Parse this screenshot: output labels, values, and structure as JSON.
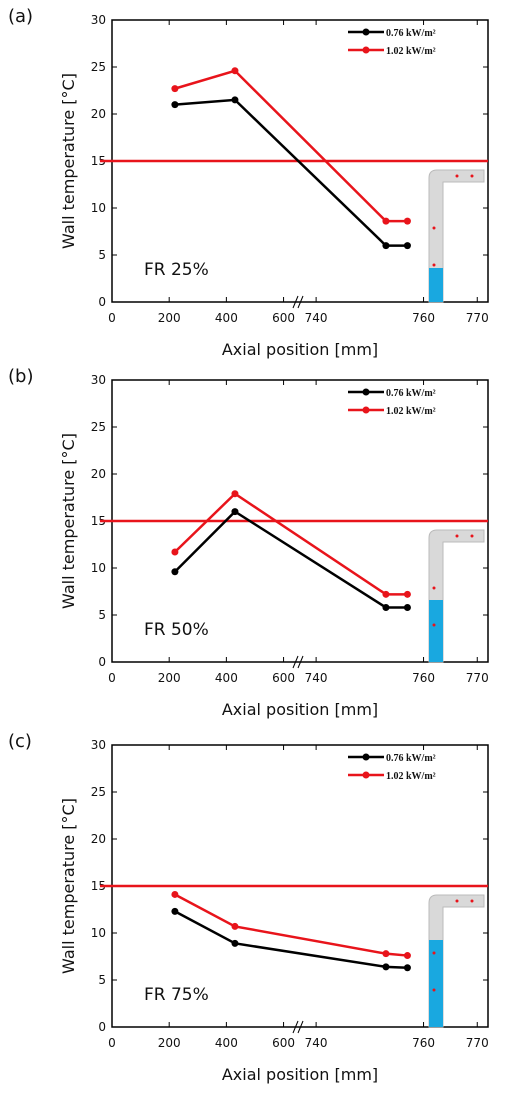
{
  "chart_data": [
    {
      "type": "line",
      "label": "(a)",
      "annotation": "FR 25%",
      "xlabel": "Axial position [mm]",
      "ylabel": "Wall temperature [°C]",
      "ylim": [
        0,
        30
      ],
      "yticks": [
        0,
        5,
        10,
        15,
        20,
        25,
        30
      ],
      "xsegments": [
        {
          "xlim": [
            0,
            640
          ],
          "xticks": [
            0,
            200,
            400,
            600
          ]
        },
        {
          "xlim": [
            737,
            772
          ],
          "xticks": [
            740,
            760,
            770
          ]
        }
      ],
      "x": [
        220,
        430,
        753,
        757
      ],
      "hline": 15,
      "hline_color": "#e8141b",
      "legend": "upper right",
      "series": [
        {
          "name": "0.76 kW/m²",
          "color": "#000000",
          "values": [
            21,
            21.5,
            6,
            6
          ]
        },
        {
          "name": "1.02 kW/m²",
          "color": "#e8141b",
          "values": [
            22.7,
            24.6,
            8.6,
            8.6
          ]
        }
      ]
    },
    {
      "type": "line",
      "label": "(b)",
      "annotation": "FR 50%",
      "xlabel": "Axial position [mm]",
      "ylabel": "Wall temperature [°C]",
      "ylim": [
        0,
        30
      ],
      "yticks": [
        0,
        5,
        10,
        15,
        20,
        25,
        30
      ],
      "xsegments": [
        {
          "xlim": [
            0,
            640
          ],
          "xticks": [
            0,
            200,
            400,
            600
          ]
        },
        {
          "xlim": [
            737,
            772
          ],
          "xticks": [
            740,
            760,
            770
          ]
        }
      ],
      "x": [
        220,
        430,
        753,
        757
      ],
      "hline": 15,
      "hline_color": "#e8141b",
      "legend": "upper right",
      "series": [
        {
          "name": "0.76 kW/m²",
          "color": "#000000",
          "values": [
            9.6,
            16,
            5.8,
            5.8
          ]
        },
        {
          "name": "1.02 kW/m²",
          "color": "#e8141b",
          "values": [
            11.7,
            17.9,
            7.2,
            7.2
          ]
        }
      ]
    },
    {
      "type": "line",
      "label": "(c)",
      "annotation": "FR 75%",
      "xlabel": "Axial position [mm]",
      "ylabel": "Wall temperature [°C]",
      "ylim": [
        0,
        30
      ],
      "yticks": [
        0,
        5,
        10,
        15,
        20,
        25,
        30
      ],
      "xsegments": [
        {
          "xlim": [
            0,
            640
          ],
          "xticks": [
            0,
            200,
            400,
            600
          ]
        },
        {
          "xlim": [
            737,
            772
          ],
          "xticks": [
            740,
            760,
            770
          ]
        }
      ],
      "x": [
        220,
        430,
        753,
        757
      ],
      "hline": 15,
      "hline_color": "#e8141b",
      "legend": "upper right",
      "series": [
        {
          "name": "0.76 kW/m²",
          "color": "#000000",
          "values": [
            12.3,
            8.9,
            6.4,
            6.3
          ]
        },
        {
          "name": "1.02 kW/m²",
          "color": "#e8141b",
          "values": [
            14.1,
            10.7,
            7.8,
            7.6
          ]
        }
      ]
    }
  ]
}
